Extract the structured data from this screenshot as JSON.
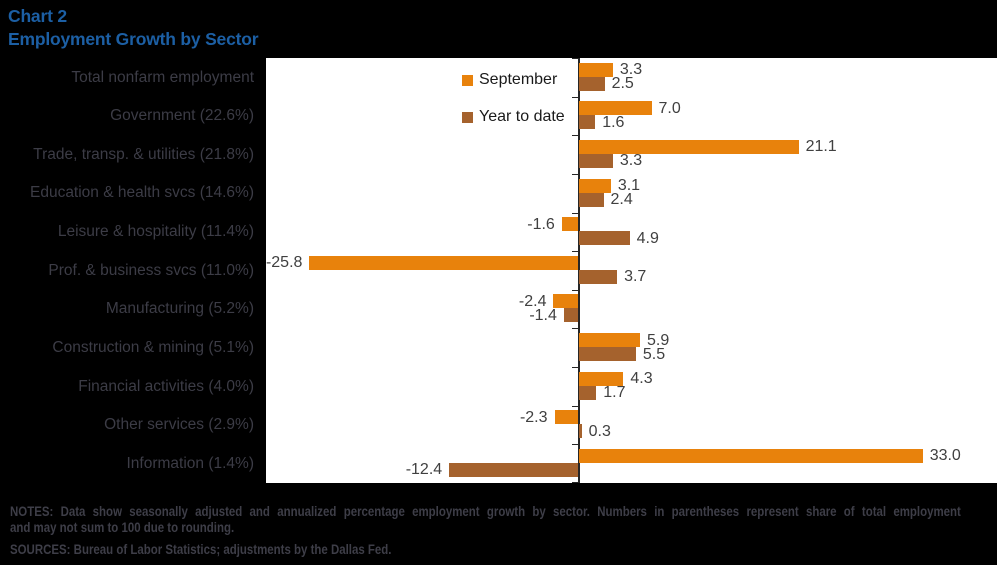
{
  "title": {
    "line1": "Chart 2",
    "line2": "Employment Growth by Sector"
  },
  "legend": {
    "items": [
      {
        "label": "September",
        "color": "#E8820C"
      },
      {
        "label": "Year to date",
        "color": "#A5622D"
      }
    ]
  },
  "chart_data": {
    "type": "bar",
    "orientation": "horizontal",
    "title": "Chart 2: Employment Growth by Sector",
    "categories": [
      "Total nonfarm employment",
      "Government (22.6%)",
      "Trade, transp. & utilities (21.8%)",
      "Education & health svcs (14.6%)",
      "Leisure & hospitality (11.4%)",
      "Prof. & business svcs (11.0%)",
      "Manufacturing (5.2%)",
      "Construction & mining (5.1%)",
      "Financial activities (4.0%)",
      "Other services (2.9%)",
      "Information (1.4%)"
    ],
    "series": [
      {
        "name": "September",
        "color": "#E8820C",
        "values": [
          3.3,
          7.0,
          21.1,
          3.1,
          -1.6,
          -25.8,
          -2.4,
          5.9,
          4.3,
          -2.3,
          33.0
        ],
        "labels": [
          "3.3",
          "7.0",
          "21.1",
          "3.1",
          "-1.6",
          "-25.8",
          "-2.4",
          "5.9",
          "4.3",
          "-2.3",
          "33.0"
        ]
      },
      {
        "name": "Year to date",
        "color": "#A5622D",
        "values": [
          2.5,
          1.6,
          3.3,
          2.4,
          4.9,
          3.7,
          -1.4,
          5.5,
          1.7,
          0.3,
          -12.4
        ],
        "labels": [
          "2.5",
          "1.6",
          "3.3",
          "2.4",
          "4.9",
          "3.7",
          "-1.4",
          "5.5",
          "1.7",
          "0.3",
          "-12.4"
        ]
      }
    ],
    "value_axis": {
      "range_approx": [
        -30,
        40
      ],
      "gridlines": false,
      "zero_line": true
    },
    "legend_position": "top-left-inside-plot",
    "data_labels": true
  },
  "notes": {
    "line1": "NOTES: Data show seasonally adjusted and annualized percentage employment growth by sector. Numbers in parentheses represent share of total employment",
    "line2": "and may not sum to 100 due to rounding.",
    "sources": "SOURCES: Bureau of Labor Statistics; adjustments by the Dallas Fed."
  },
  "colors": {
    "background": "#000000",
    "plot_background": "#FFFFFF",
    "title_blue": "#1C5FA4",
    "september_orange": "#E8820C",
    "year_to_date_brown": "#A5622D",
    "axis": "#262626",
    "value_label": "#404040",
    "category_label": "#3C3C46",
    "notes_text": "#3E3E48"
  }
}
